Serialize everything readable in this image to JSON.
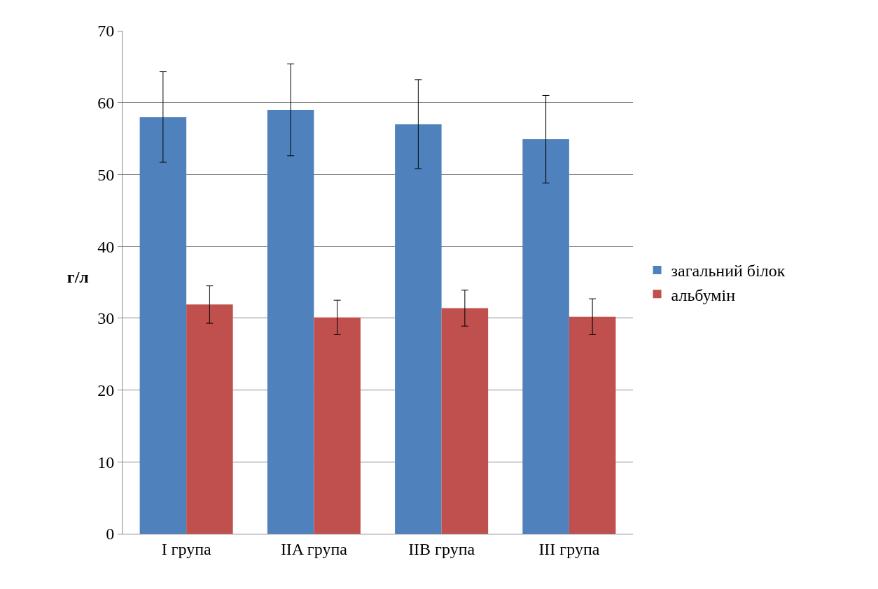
{
  "chart_data": {
    "type": "bar",
    "ylabel": "г/л",
    "categories": [
      "I група",
      "IIA група",
      "IIB група",
      "III група"
    ],
    "series": [
      {
        "name": "загальний білок",
        "color": "#4f81bd",
        "values": [
          58,
          59,
          57,
          54.9
        ],
        "errors": [
          6.3,
          6.4,
          6.2,
          6.1
        ]
      },
      {
        "name": "альбумін",
        "color": "#c0504d",
        "values": [
          31.9,
          30.1,
          31.4,
          30.2
        ],
        "errors": [
          2.6,
          2.4,
          2.5,
          2.5
        ]
      }
    ],
    "ylim": [
      0,
      70
    ],
    "yticks": [
      0,
      10,
      20,
      30,
      40,
      50,
      60,
      70
    ],
    "grid": "y",
    "legend": "right"
  }
}
